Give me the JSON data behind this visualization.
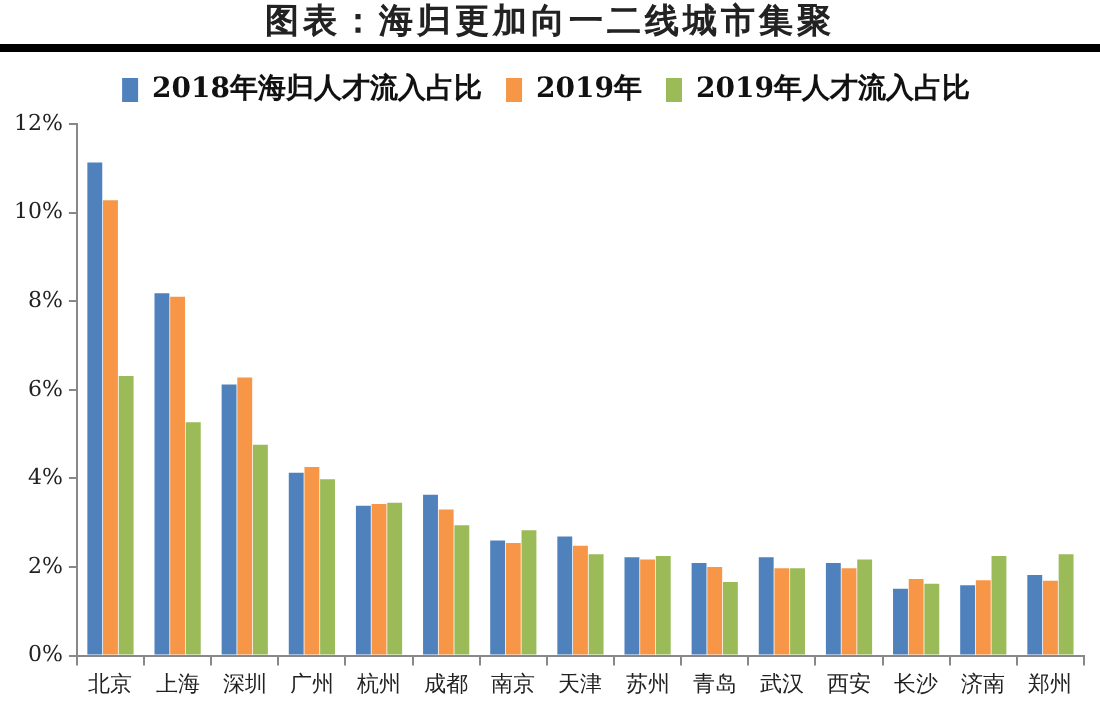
{
  "chart_data": {
    "type": "bar",
    "title": "图表：海归更加向一二线城市集聚",
    "categories": [
      "北京",
      "上海",
      "深圳",
      "广州",
      "杭州",
      "成都",
      "南京",
      "天津",
      "苏州",
      "青岛",
      "武汉",
      "西安",
      "长沙",
      "济南",
      "郑州"
    ],
    "series": [
      {
        "name": "2018年海归人才流入占比",
        "color": "#4f81bd",
        "values": [
          11.13,
          8.18,
          6.12,
          4.13,
          3.38,
          3.63,
          2.6,
          2.69,
          2.22,
          2.09,
          2.22,
          2.09,
          1.51,
          1.59,
          1.82
        ]
      },
      {
        "name": "2019年",
        "color": "#f79646",
        "values": [
          10.28,
          8.1,
          6.28,
          4.26,
          3.42,
          3.3,
          2.54,
          2.48,
          2.17,
          2.0,
          1.97,
          1.97,
          1.73,
          1.7,
          1.69
        ]
      },
      {
        "name": "2019年人才流入占比",
        "color": "#9bbb59",
        "values": [
          6.31,
          5.27,
          4.76,
          3.98,
          3.45,
          2.94,
          2.83,
          2.29,
          2.25,
          1.66,
          1.97,
          2.17,
          1.62,
          2.25,
          2.29
        ]
      }
    ],
    "ylim": [
      0,
      12
    ],
    "yticks": [
      {
        "value": 0,
        "label": "0%"
      },
      {
        "value": 2,
        "label": "2%"
      },
      {
        "value": 4,
        "label": "4%"
      },
      {
        "value": 6,
        "label": "6%"
      },
      {
        "value": 8,
        "label": "8%"
      },
      {
        "value": 10,
        "label": "10%"
      },
      {
        "value": 12,
        "label": "12%"
      }
    ],
    "grid": false,
    "legend": "top"
  }
}
